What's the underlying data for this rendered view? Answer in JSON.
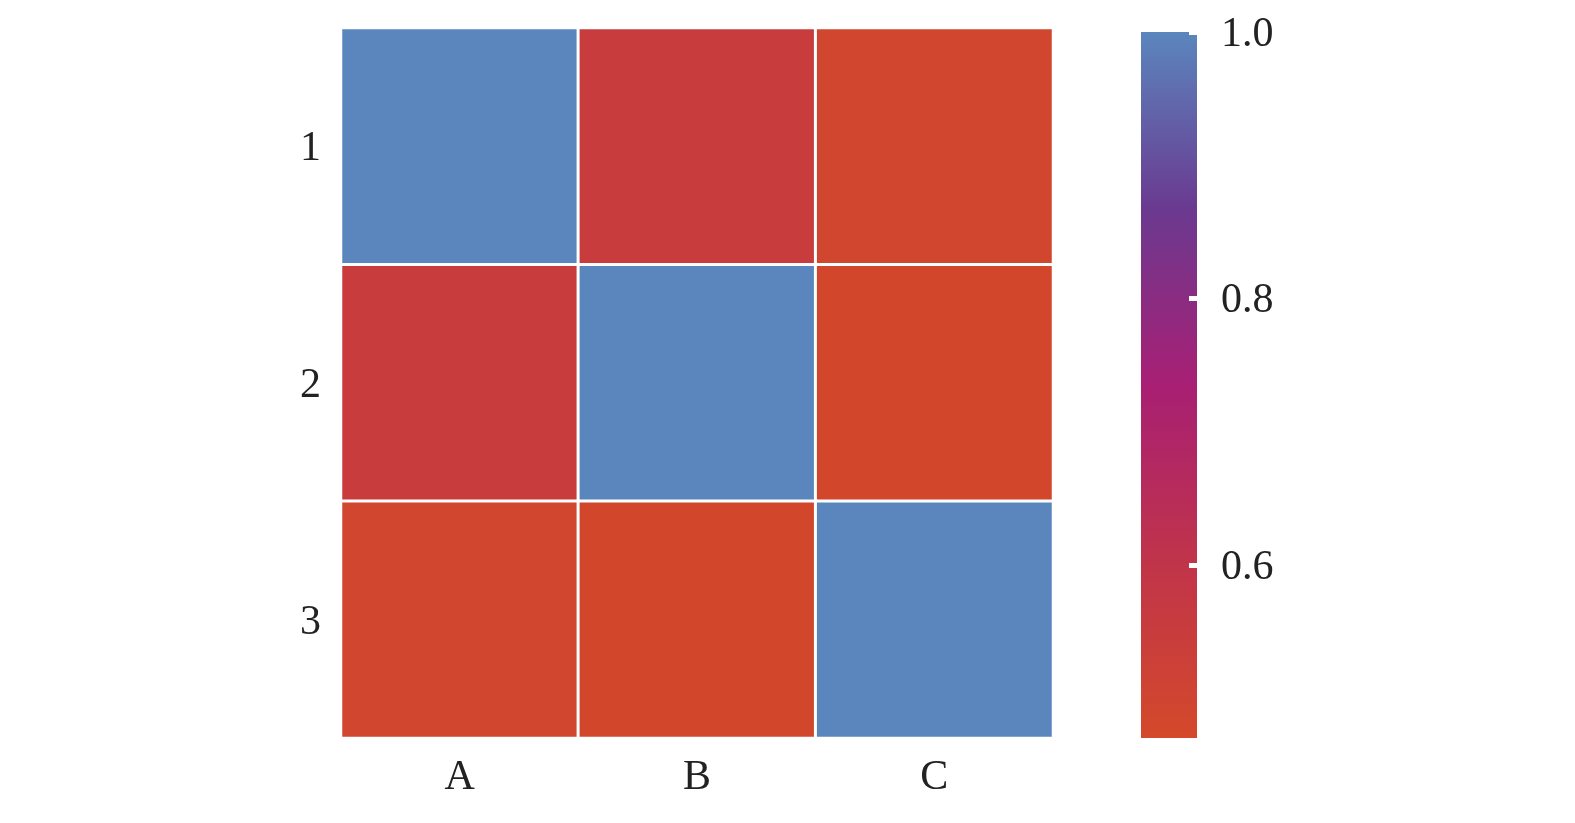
{
  "chart_data": {
    "type": "heatmap",
    "categories": [
      "A",
      "B",
      "C"
    ],
    "y_categories": [
      "1",
      "2",
      "3"
    ],
    "cells": [
      [
        1.0,
        0.55,
        0.49
      ],
      [
        0.55,
        1.0,
        0.48
      ],
      [
        0.49,
        0.48,
        1.0
      ]
    ],
    "clim": [
      0.47,
      1.0
    ],
    "cticks": [
      0.6,
      0.8,
      {
        "value": 1.0,
        "label": "1.0"
      }
    ]
  }
}
